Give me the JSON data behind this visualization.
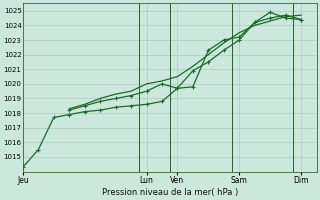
{
  "bg_color": "#cce8dc",
  "grid_color": "#aaccbb",
  "line_color": "#1a6b2a",
  "ylabel_text": "Pression niveau de la mer( hPa )",
  "ylim": [
    1014,
    1025.5
  ],
  "yticks": [
    1015,
    1016,
    1017,
    1018,
    1019,
    1020,
    1021,
    1022,
    1023,
    1024,
    1025
  ],
  "xtick_labels": [
    "Jeu",
    "Lun",
    "Ven",
    "Sam",
    "Dim"
  ],
  "xtick_positions": [
    0,
    8,
    10,
    14,
    18
  ],
  "xlim": [
    0,
    19
  ],
  "vline_positions": [
    7.5,
    9.5,
    13.5,
    17.5
  ],
  "line1_x": [
    0,
    1,
    2,
    3,
    4,
    5,
    6,
    7,
    8,
    9,
    10,
    11,
    12,
    13,
    14,
    15,
    16,
    17,
    18
  ],
  "line1_y": [
    1014.3,
    1015.5,
    1017.7,
    1017.9,
    1018.1,
    1018.2,
    1018.4,
    1018.5,
    1018.6,
    1018.8,
    1019.7,
    1019.8,
    1022.3,
    1023.0,
    1023.2,
    1024.2,
    1024.5,
    1024.7,
    1024.4
  ],
  "line2_x": [
    3,
    4,
    5,
    6,
    7,
    8,
    9,
    10,
    11,
    12,
    13,
    14,
    15,
    16,
    17,
    18
  ],
  "line2_y": [
    1018.2,
    1018.5,
    1018.8,
    1019.0,
    1019.2,
    1019.5,
    1020.0,
    1019.7,
    1020.9,
    1021.5,
    1022.3,
    1023.0,
    1024.2,
    1024.9,
    1024.5,
    1024.4
  ],
  "line3_x": [
    3,
    4,
    5,
    6,
    7,
    8,
    9,
    10,
    11,
    12,
    13,
    14,
    15,
    16,
    17,
    18
  ],
  "line3_y": [
    1018.3,
    1018.6,
    1019.0,
    1019.3,
    1019.5,
    1020.0,
    1020.2,
    1020.5,
    1021.2,
    1022.0,
    1022.8,
    1023.5,
    1024.0,
    1024.3,
    1024.6,
    1024.7
  ],
  "figsize": [
    3.2,
    2.0
  ],
  "dpi": 100
}
